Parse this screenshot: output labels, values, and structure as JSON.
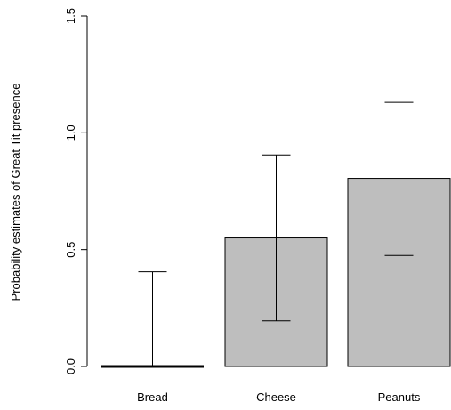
{
  "chart_data": {
    "type": "bar",
    "title": "",
    "xlabel": "",
    "ylabel": "Probability estimates of Great Tit presence",
    "categories": [
      "Bread",
      "Cheese",
      "Peanuts"
    ],
    "values": [
      0.0,
      0.55,
      0.805
    ],
    "error_bars": {
      "lower": [
        0.0,
        0.195,
        0.475
      ],
      "upper": [
        0.405,
        0.905,
        1.13
      ]
    },
    "ylim": [
      0,
      1.5
    ],
    "yticks": [
      0.0,
      0.5,
      1.0,
      1.5
    ],
    "ytick_labels": [
      "0.0",
      "0.5",
      "1.0",
      "1.5"
    ],
    "grid": false,
    "colors": {
      "bar_fill": "#bebebe",
      "bar_stroke": "#000000",
      "error_bar": "#000000"
    }
  }
}
